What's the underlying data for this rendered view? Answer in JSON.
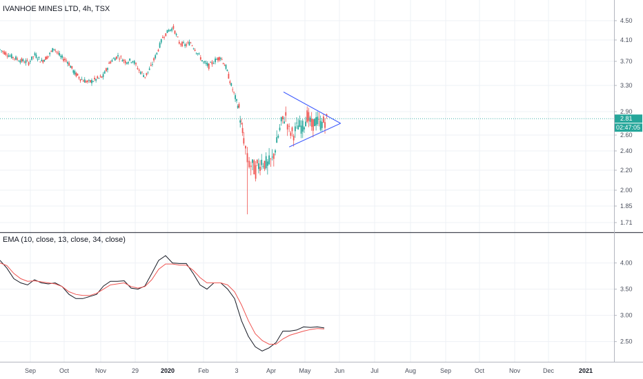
{
  "chart_data": [
    {
      "type": "candlestick",
      "title": "IVANHOE MINES LTD, 4h, TSX",
      "y_ticks": [
        "4.50",
        "4.10",
        "3.70",
        "3.30",
        "2.90",
        "2.60",
        "2.40",
        "2.20",
        "2.00",
        "1.85",
        "1.71"
      ],
      "last_price": "2.81",
      "countdown": "02:47:05",
      "colors": {
        "up": "#26a69a",
        "down": "#ef5350",
        "badge_price": "#26a69a",
        "badge_time": "#26a69a",
        "triangle": "#3d5afe",
        "price_line": "#26a69a"
      },
      "close_path": [
        [
          "2019-08-14",
          3.92
        ],
        [
          "2019-08-20",
          3.8
        ],
        [
          "2019-08-26",
          3.72
        ],
        [
          "2019-08-31",
          3.68
        ],
        [
          "2019-09-05",
          3.82
        ],
        [
          "2019-09-11",
          3.7
        ],
        [
          "2019-09-17",
          3.8
        ],
        [
          "2019-09-22",
          3.95
        ],
        [
          "2019-09-28",
          3.78
        ],
        [
          "2019-10-04",
          3.7
        ],
        [
          "2019-10-10",
          3.5
        ],
        [
          "2019-10-16",
          3.4
        ],
        [
          "2019-10-22",
          3.35
        ],
        [
          "2019-10-28",
          3.4
        ],
        [
          "2019-11-03",
          3.45
        ],
        [
          "2019-11-09",
          3.7
        ],
        [
          "2019-11-15",
          3.8
        ],
        [
          "2019-11-21",
          3.7
        ],
        [
          "2019-11-27",
          3.72
        ],
        [
          "2019-12-03",
          3.55
        ],
        [
          "2019-12-09",
          3.45
        ],
        [
          "2019-12-15",
          3.6
        ],
        [
          "2019-12-21",
          3.85
        ],
        [
          "2019-12-27",
          4.15
        ],
        [
          "2020-01-02",
          4.3
        ],
        [
          "2020-01-06",
          4.35
        ],
        [
          "2020-01-11",
          4.05
        ],
        [
          "2020-01-16",
          4.0
        ],
        [
          "2020-01-21",
          4.05
        ],
        [
          "2020-01-27",
          3.85
        ],
        [
          "2020-02-01",
          3.68
        ],
        [
          "2020-02-06",
          3.62
        ],
        [
          "2020-02-12",
          3.72
        ],
        [
          "2020-02-17",
          3.78
        ],
        [
          "2020-02-22",
          3.6
        ],
        [
          "2020-02-27",
          3.3
        ],
        [
          "2020-03-03",
          3.05
        ],
        [
          "2020-03-05",
          2.95
        ],
        [
          "2020-03-07",
          2.7
        ],
        [
          "2020-03-09",
          2.55
        ],
        [
          "2020-03-12",
          2.3
        ],
        [
          "2020-03-15",
          2.25
        ],
        [
          "2020-03-19",
          2.2
        ],
        [
          "2020-03-24",
          2.3
        ],
        [
          "2020-03-29",
          2.25
        ],
        [
          "2020-04-02",
          2.3
        ],
        [
          "2020-04-06",
          2.5
        ],
        [
          "2020-04-10",
          2.75
        ],
        [
          "2020-04-14",
          2.85
        ],
        [
          "2020-04-17",
          2.65
        ],
        [
          "2020-04-21",
          2.62
        ],
        [
          "2020-04-25",
          2.72
        ],
        [
          "2020-04-29",
          2.7
        ],
        [
          "2020-05-03",
          2.85
        ],
        [
          "2020-05-07",
          2.72
        ],
        [
          "2020-05-11",
          2.78
        ],
        [
          "2020-05-15",
          2.74
        ],
        [
          "2020-05-19",
          2.78
        ],
        [
          "2020-05-22",
          2.81
        ]
      ],
      "triangle": {
        "upper": [
          [
            "2020-04-12",
            3.2
          ],
          [
            "2020-06-02",
            2.75
          ]
        ],
        "lower": [
          [
            "2020-04-17",
            2.45
          ],
          [
            "2020-06-02",
            2.75
          ]
        ]
      }
    },
    {
      "type": "line",
      "title": "EMA (10, close, 13, close, 34, close)",
      "y_ticks": [
        "4.00",
        "3.50",
        "3.00",
        "2.50"
      ],
      "ylim": [
        2.18,
        4.35
      ],
      "series": [
        {
          "color": "#131722",
          "values": [
            [
              0,
              4.05
            ],
            [
              10,
              3.9
            ],
            [
              20,
              3.7
            ],
            [
              30,
              3.62
            ],
            [
              40,
              3.58
            ],
            [
              50,
              3.68
            ],
            [
              60,
              3.62
            ],
            [
              70,
              3.6
            ],
            [
              80,
              3.62
            ],
            [
              90,
              3.55
            ],
            [
              100,
              3.4
            ],
            [
              110,
              3.32
            ],
            [
              120,
              3.32
            ],
            [
              130,
              3.36
            ],
            [
              140,
              3.4
            ],
            [
              150,
              3.56
            ],
            [
              160,
              3.65
            ],
            [
              170,
              3.65
            ],
            [
              180,
              3.66
            ],
            [
              190,
              3.52
            ],
            [
              200,
              3.5
            ],
            [
              210,
              3.56
            ],
            [
              220,
              3.8
            ],
            [
              230,
              4.05
            ],
            [
              240,
              4.14
            ],
            [
              250,
              4.0
            ],
            [
              260,
              3.99
            ],
            [
              270,
              3.99
            ],
            [
              280,
              3.8
            ],
            [
              290,
              3.58
            ],
            [
              300,
              3.5
            ],
            [
              310,
              3.62
            ],
            [
              320,
              3.62
            ],
            [
              330,
              3.5
            ],
            [
              340,
              3.32
            ],
            [
              350,
              2.9
            ],
            [
              360,
              2.6
            ],
            [
              370,
              2.4
            ],
            [
              380,
              2.32
            ],
            [
              390,
              2.38
            ],
            [
              400,
              2.48
            ],
            [
              410,
              2.7
            ],
            [
              420,
              2.7
            ],
            [
              430,
              2.72
            ],
            [
              440,
              2.78
            ],
            [
              450,
              2.77
            ],
            [
              460,
              2.78
            ],
            [
              470,
              2.76
            ]
          ]
        },
        {
          "color": "#ef5350",
          "values": [
            [
              0,
              4.0
            ],
            [
              10,
              3.95
            ],
            [
              20,
              3.8
            ],
            [
              30,
              3.7
            ],
            [
              40,
              3.65
            ],
            [
              50,
              3.66
            ],
            [
              60,
              3.64
            ],
            [
              70,
              3.62
            ],
            [
              80,
              3.6
            ],
            [
              90,
              3.55
            ],
            [
              100,
              3.45
            ],
            [
              110,
              3.4
            ],
            [
              120,
              3.38
            ],
            [
              130,
              3.38
            ],
            [
              140,
              3.42
            ],
            [
              150,
              3.5
            ],
            [
              160,
              3.58
            ],
            [
              170,
              3.6
            ],
            [
              180,
              3.62
            ],
            [
              190,
              3.55
            ],
            [
              200,
              3.52
            ],
            [
              210,
              3.55
            ],
            [
              220,
              3.68
            ],
            [
              230,
              3.88
            ],
            [
              240,
              3.98
            ],
            [
              250,
              3.98
            ],
            [
              260,
              3.96
            ],
            [
              270,
              3.96
            ],
            [
              280,
              3.86
            ],
            [
              290,
              3.72
            ],
            [
              300,
              3.62
            ],
            [
              310,
              3.62
            ],
            [
              320,
              3.62
            ],
            [
              330,
              3.58
            ],
            [
              340,
              3.45
            ],
            [
              350,
              3.2
            ],
            [
              360,
              2.9
            ],
            [
              370,
              2.65
            ],
            [
              380,
              2.52
            ],
            [
              390,
              2.45
            ],
            [
              400,
              2.45
            ],
            [
              410,
              2.55
            ],
            [
              420,
              2.62
            ],
            [
              430,
              2.66
            ],
            [
              440,
              2.7
            ],
            [
              450,
              2.73
            ],
            [
              460,
              2.75
            ],
            [
              470,
              2.74
            ]
          ]
        }
      ]
    }
  ],
  "x_axis": [
    "Sep",
    "Oct",
    "Nov",
    "29",
    "2020",
    "Feb",
    "3",
    "Apr",
    "May",
    "Jun",
    "Jul",
    "Aug",
    "Sep",
    "Oct",
    "Nov",
    "Dec",
    "2021"
  ]
}
